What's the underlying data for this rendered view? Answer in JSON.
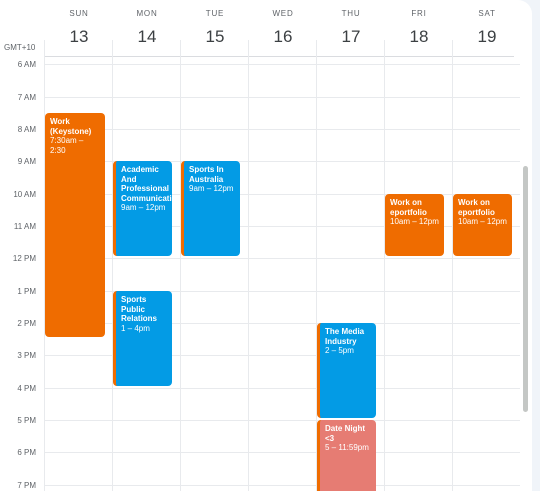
{
  "timezone": "GMT+10",
  "days": [
    {
      "dow": "SUN",
      "date": "13"
    },
    {
      "dow": "MON",
      "date": "14"
    },
    {
      "dow": "TUE",
      "date": "15"
    },
    {
      "dow": "WED",
      "date": "16"
    },
    {
      "dow": "THU",
      "date": "17"
    },
    {
      "dow": "FRI",
      "date": "18"
    },
    {
      "dow": "SAT",
      "date": "19"
    }
  ],
  "hours": [
    "6 AM",
    "7 AM",
    "8 AM",
    "9 AM",
    "10 AM",
    "11 AM",
    "12 PM",
    "1 PM",
    "2 PM",
    "3 PM",
    "4 PM",
    "5 PM",
    "6 PM",
    "7 PM"
  ],
  "events": [
    {
      "title": "Work (Keystone)",
      "time": "7:30am – 2:30"
    },
    {
      "title": "Academic And Professional Communications",
      "time": "9am – 12pm"
    },
    {
      "title": "Sports Public Relations",
      "time": "1 – 4pm"
    },
    {
      "title": "Sports In Australia",
      "time": "9am – 12pm"
    },
    {
      "title": "The Media Industry",
      "time": "2 – 5pm"
    },
    {
      "title": "Date Night <3",
      "time": "5 – 11:59pm"
    },
    {
      "title": "Work on eportfolio",
      "time": "10am – 12pm"
    },
    {
      "title": "Work on eportfolio",
      "time": "10am – 12pm"
    }
  ],
  "colors": {
    "orange": "#ef6c00",
    "blue": "#039be5",
    "pink": "#e67c73"
  }
}
